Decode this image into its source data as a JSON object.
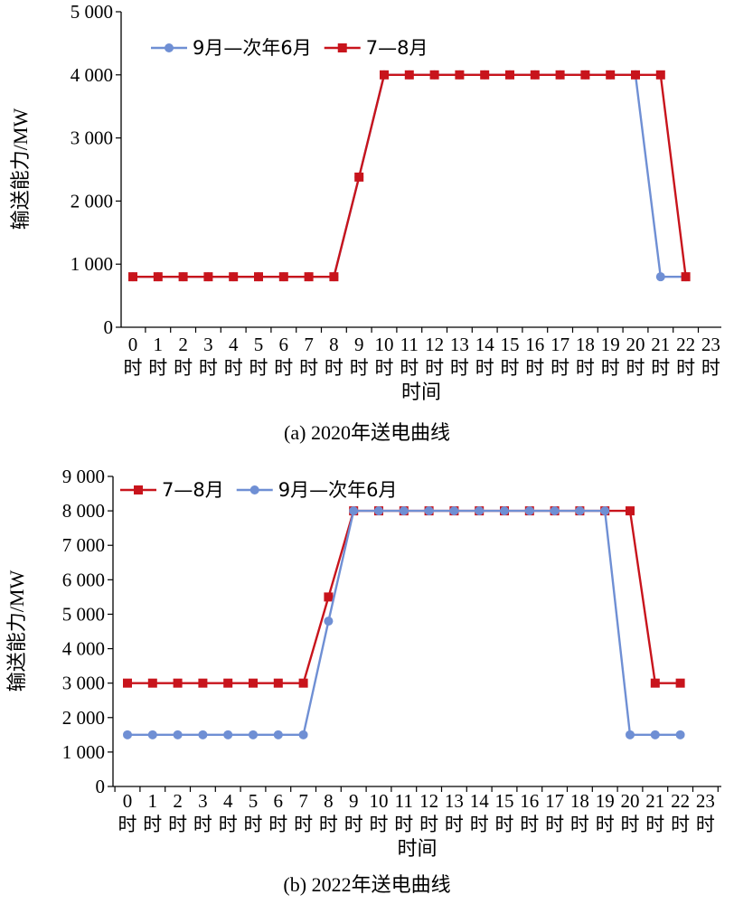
{
  "colors": {
    "blue": "#6f8fd4",
    "red": "#c8141c"
  },
  "chart_data": [
    {
      "type": "line",
      "caption": "(a) 2020年送电曲线",
      "xlabel": "时间",
      "ylabel": "输送能力/MW",
      "ylim": [
        0,
        5000
      ],
      "yticks": [
        0,
        1000,
        2000,
        3000,
        4000,
        5000
      ],
      "ytick_labels": [
        "0",
        "1 000",
        "2 000",
        "3 000",
        "4 000",
        "5 000"
      ],
      "x": [
        0,
        1,
        2,
        3,
        4,
        5,
        6,
        7,
        8,
        9,
        10,
        11,
        12,
        13,
        14,
        15,
        16,
        17,
        18,
        19,
        20,
        21,
        22,
        23
      ],
      "xtick_numbers": [
        "0",
        "1",
        "2",
        "3",
        "4",
        "5",
        "6",
        "7",
        "8",
        "9",
        "10",
        "11",
        "12",
        "13",
        "14",
        "15",
        "16",
        "17",
        "18",
        "19",
        "20",
        "21",
        "22",
        "23"
      ],
      "xtick_unit": "时",
      "legend_placement": "top-left",
      "series": [
        {
          "name": "9月—次年6月",
          "color": "blue",
          "marker": "circle",
          "x": [
            0,
            1,
            2,
            3,
            4,
            5,
            6,
            7,
            8,
            9,
            10,
            11,
            12,
            13,
            14,
            15,
            16,
            17,
            18,
            19,
            20,
            21,
            22
          ],
          "values": [
            800,
            800,
            800,
            800,
            800,
            800,
            800,
            800,
            800,
            2380,
            4000,
            4000,
            4000,
            4000,
            4000,
            4000,
            4000,
            4000,
            4000,
            4000,
            4000,
            800,
            800
          ]
        },
        {
          "name": "7—8月",
          "color": "red",
          "marker": "square",
          "x": [
            0,
            1,
            2,
            3,
            4,
            5,
            6,
            7,
            8,
            9,
            10,
            11,
            12,
            13,
            14,
            15,
            16,
            17,
            18,
            19,
            20,
            21,
            22
          ],
          "values": [
            800,
            800,
            800,
            800,
            800,
            800,
            800,
            800,
            800,
            2380,
            4000,
            4000,
            4000,
            4000,
            4000,
            4000,
            4000,
            4000,
            4000,
            4000,
            4000,
            4000,
            800
          ]
        }
      ]
    },
    {
      "type": "line",
      "caption": "(b) 2022年送电曲线",
      "xlabel": "时间",
      "ylabel": "输送能力/MW",
      "ylim": [
        0,
        9000
      ],
      "yticks": [
        0,
        1000,
        2000,
        3000,
        4000,
        5000,
        6000,
        7000,
        8000,
        9000
      ],
      "ytick_labels": [
        "0",
        "1 000",
        "2 000",
        "3 000",
        "4 000",
        "5 000",
        "6 000",
        "7 000",
        "8 000",
        "9 000"
      ],
      "x": [
        0,
        1,
        2,
        3,
        4,
        5,
        6,
        7,
        8,
        9,
        10,
        11,
        12,
        13,
        14,
        15,
        16,
        17,
        18,
        19,
        20,
        21,
        22,
        23
      ],
      "xtick_numbers": [
        "0",
        "1",
        "2",
        "3",
        "4",
        "5",
        "6",
        "7",
        "8",
        "9",
        "10",
        "11",
        "12",
        "13",
        "14",
        "15",
        "16",
        "17",
        "18",
        "19",
        "20",
        "21",
        "22",
        "23"
      ],
      "xtick_unit": "时",
      "legend_placement": "top-left",
      "series": [
        {
          "name": "7—8月",
          "color": "red",
          "marker": "square",
          "x": [
            0,
            1,
            2,
            3,
            4,
            5,
            6,
            7,
            8,
            9,
            10,
            11,
            12,
            13,
            14,
            15,
            16,
            17,
            18,
            19,
            20,
            21,
            22
          ],
          "values": [
            3000,
            3000,
            3000,
            3000,
            3000,
            3000,
            3000,
            3000,
            5500,
            8000,
            8000,
            8000,
            8000,
            8000,
            8000,
            8000,
            8000,
            8000,
            8000,
            8000,
            8000,
            3000,
            3000
          ]
        },
        {
          "name": "9月—次年6月",
          "color": "blue",
          "marker": "circle",
          "x": [
            0,
            1,
            2,
            3,
            4,
            5,
            6,
            7,
            8,
            9,
            10,
            11,
            12,
            13,
            14,
            15,
            16,
            17,
            18,
            19,
            20,
            21,
            22
          ],
          "values": [
            1500,
            1500,
            1500,
            1500,
            1500,
            1500,
            1500,
            1500,
            4800,
            8000,
            8000,
            8000,
            8000,
            8000,
            8000,
            8000,
            8000,
            8000,
            8000,
            8000,
            1500,
            1500,
            1500
          ]
        }
      ]
    }
  ]
}
